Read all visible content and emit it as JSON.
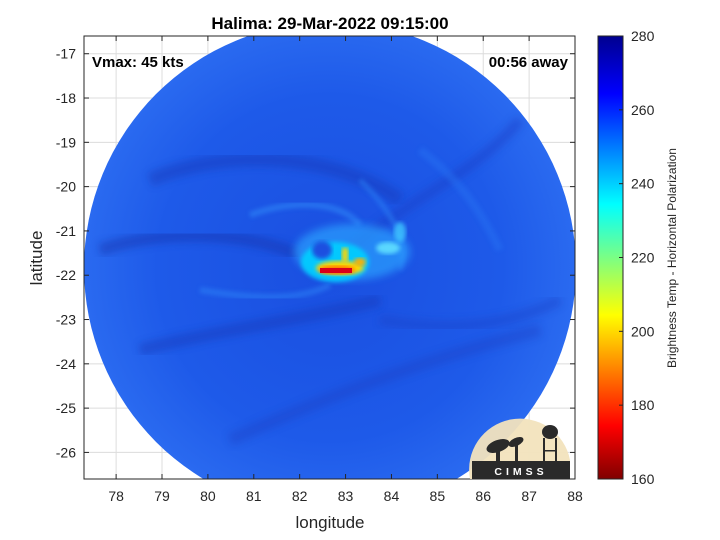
{
  "chart_data": {
    "type": "heatmap",
    "title": "Halima: 29-Mar-2022 09:15:00",
    "xlabel": "longitude",
    "ylabel": "latitude",
    "xlim": [
      77.3,
      88
    ],
    "ylim": [
      -26.6,
      -16.6
    ],
    "xticks": [
      78,
      79,
      80,
      81,
      82,
      83,
      84,
      85,
      86,
      87,
      88
    ],
    "yticks": [
      -17,
      -18,
      -19,
      -20,
      -21,
      -22,
      -23,
      -24,
      -25,
      -26
    ],
    "grid": true,
    "swath": {
      "center_lon": 82.7,
      "center_lat": -21.7,
      "radius_deg": 5.3
    },
    "storm_center": {
      "lon": 82.6,
      "lat": -21.8
    },
    "colorbar": {
      "label": "Brightness Temp - Horizontal Polarization",
      "range": [
        160,
        280
      ],
      "ticks": [
        160,
        180,
        200,
        220,
        240,
        260,
        280
      ],
      "colormap": "jet",
      "placement": "right"
    },
    "annotations": {
      "vmax": "Vmax: 45 kts",
      "time_offset": "00:56 away"
    }
  },
  "logo": {
    "text": "CIMSS"
  },
  "colors": {
    "background_field": "#1f55e8",
    "cold_core": "#d9001a",
    "warm_ring": "#00d5ff"
  }
}
